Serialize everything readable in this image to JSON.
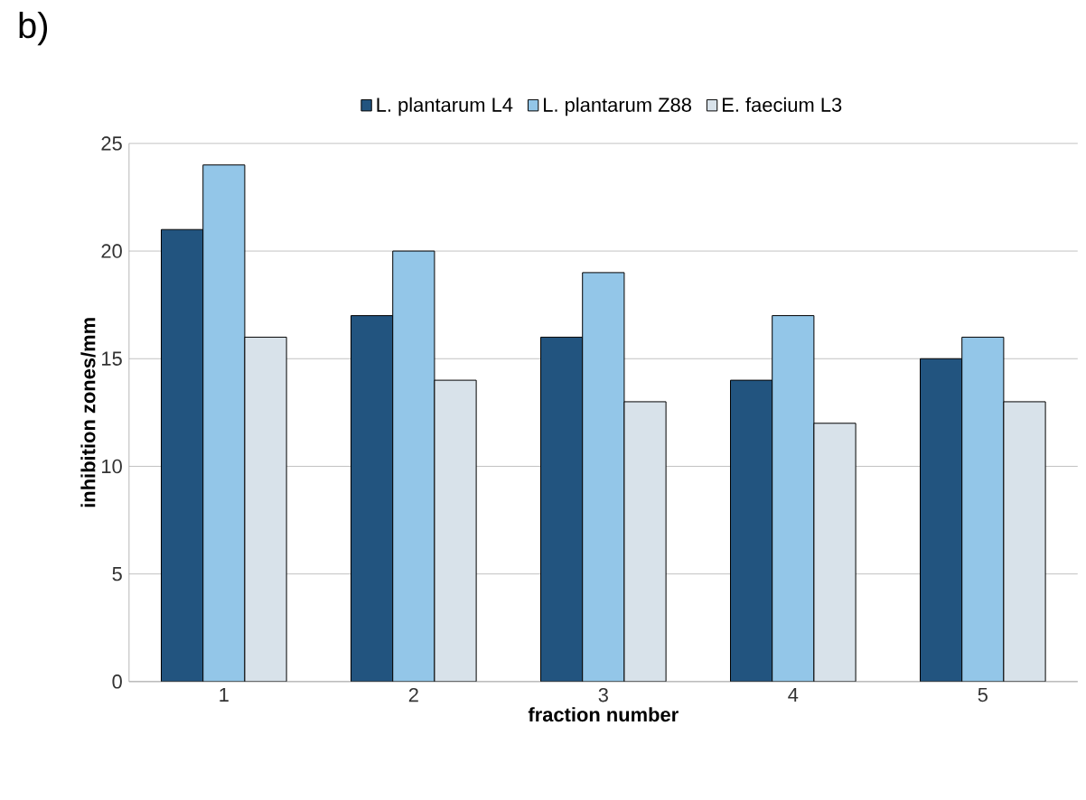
{
  "chart_data": {
    "type": "bar",
    "annotations": [
      "b)"
    ],
    "xlabel": "fraction number",
    "ylabel": "inhibition zones/mm",
    "categories": [
      "1",
      "2",
      "3",
      "4",
      "5"
    ],
    "series": [
      {
        "name": "L. plantarum L4",
        "color": "#22547f",
        "values": [
          21,
          17,
          16,
          14,
          15
        ]
      },
      {
        "name": "L. plantarum Z88",
        "color": "#93c6e8",
        "values": [
          24,
          20,
          19,
          17,
          16
        ]
      },
      {
        "name": "E. faecium L3",
        "color": "#d8e2ea",
        "values": [
          16,
          14,
          13,
          12,
          13
        ]
      }
    ],
    "ylim": [
      0,
      25
    ],
    "yticks": [
      0,
      5,
      10,
      15,
      20,
      25
    ],
    "grid": "y",
    "legend": "top"
  }
}
